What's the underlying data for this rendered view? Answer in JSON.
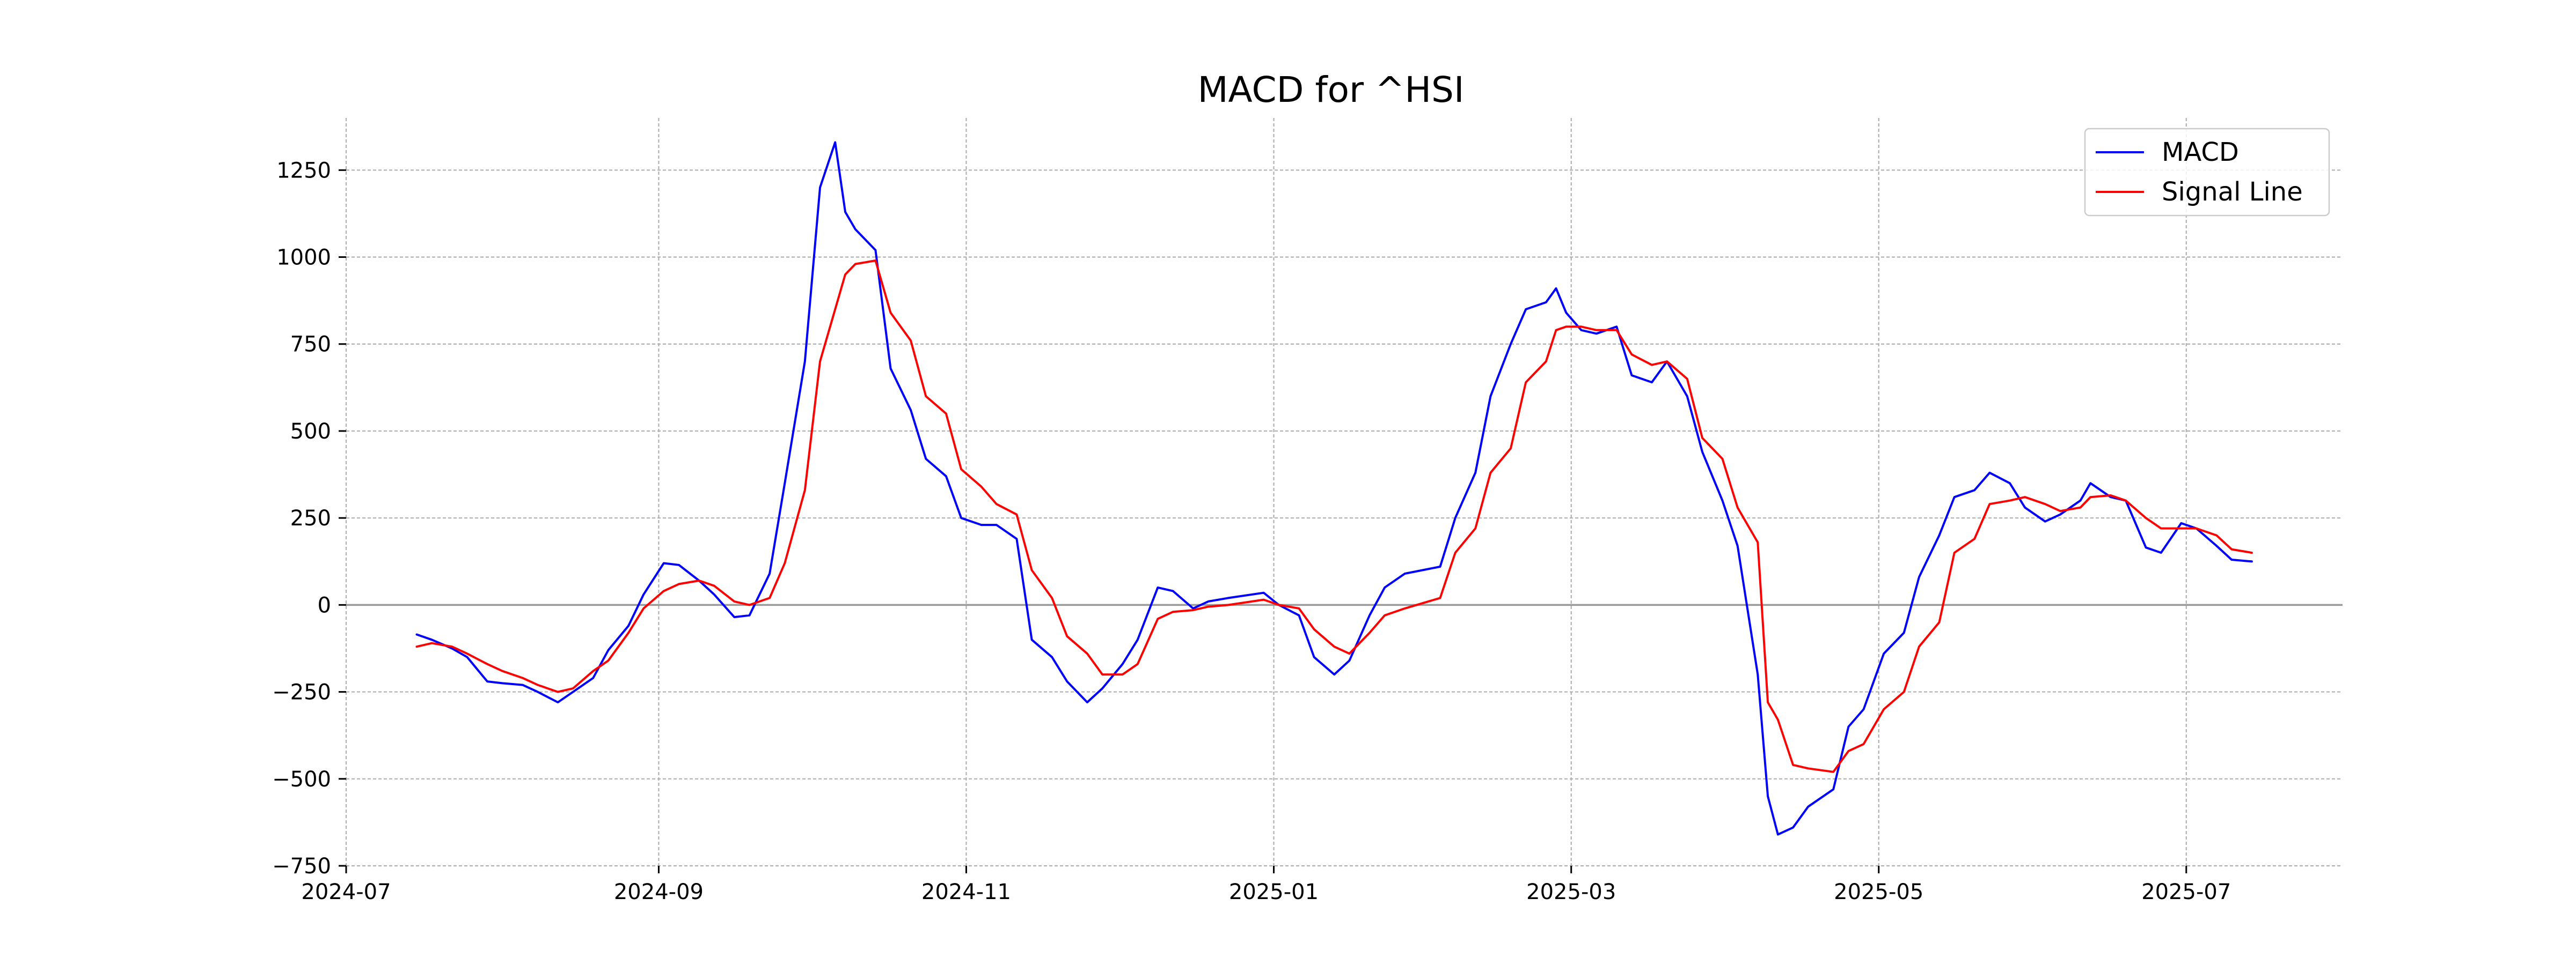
{
  "chart_data": {
    "type": "line",
    "title": "MACD for ^HSI",
    "xlabel": "",
    "ylabel": "",
    "x_range": [
      "2024-07-01",
      "2025-08-01"
    ],
    "ylim": [
      -750,
      1400
    ],
    "x_ticks": [
      {
        "date": "2024-07-01",
        "label": "2024-07"
      },
      {
        "date": "2024-09-01",
        "label": "2024-09"
      },
      {
        "date": "2024-11-01",
        "label": "2024-11"
      },
      {
        "date": "2025-01-01",
        "label": "2025-01"
      },
      {
        "date": "2025-03-01",
        "label": "2025-03"
      },
      {
        "date": "2025-05-01",
        "label": "2025-05"
      },
      {
        "date": "2025-07-01",
        "label": "2025-07"
      }
    ],
    "y_ticks": [
      {
        "value": -750,
        "label": "−750"
      },
      {
        "value": -500,
        "label": "−500"
      },
      {
        "value": -250,
        "label": "−250"
      },
      {
        "value": 0,
        "label": "0"
      },
      {
        "value": 250,
        "label": "250"
      },
      {
        "value": 500,
        "label": "500"
      },
      {
        "value": 750,
        "label": "750"
      },
      {
        "value": 1000,
        "label": "1000"
      },
      {
        "value": 1250,
        "label": "1250"
      }
    ],
    "grid": true,
    "zero_line": true,
    "legend_position": "top-right",
    "series": [
      {
        "name": "MACD",
        "color": "#0000ff",
        "points": [
          [
            "2024-07-15",
            -85
          ],
          [
            "2024-07-18",
            -100
          ],
          [
            "2024-07-22",
            -125
          ],
          [
            "2024-07-25",
            -150
          ],
          [
            "2024-07-29",
            -220
          ],
          [
            "2024-08-01",
            -225
          ],
          [
            "2024-08-05",
            -230
          ],
          [
            "2024-08-08",
            -250
          ],
          [
            "2024-08-12",
            -280
          ],
          [
            "2024-08-15",
            -250
          ],
          [
            "2024-08-19",
            -210
          ],
          [
            "2024-08-22",
            -130
          ],
          [
            "2024-08-26",
            -60
          ],
          [
            "2024-08-29",
            30
          ],
          [
            "2024-09-02",
            120
          ],
          [
            "2024-09-05",
            115
          ],
          [
            "2024-09-09",
            70
          ],
          [
            "2024-09-12",
            30
          ],
          [
            "2024-09-16",
            -35
          ],
          [
            "2024-09-19",
            -30
          ],
          [
            "2024-09-23",
            90
          ],
          [
            "2024-09-26",
            350
          ],
          [
            "2024-09-30",
            700
          ],
          [
            "2024-10-03",
            1200
          ],
          [
            "2024-10-06",
            1330
          ],
          [
            "2024-10-08",
            1130
          ],
          [
            "2024-10-10",
            1080
          ],
          [
            "2024-10-14",
            1020
          ],
          [
            "2024-10-17",
            680
          ],
          [
            "2024-10-21",
            560
          ],
          [
            "2024-10-24",
            420
          ],
          [
            "2024-10-28",
            370
          ],
          [
            "2024-10-31",
            250
          ],
          [
            "2024-11-04",
            230
          ],
          [
            "2024-11-07",
            230
          ],
          [
            "2024-11-11",
            190
          ],
          [
            "2024-11-14",
            -100
          ],
          [
            "2024-11-18",
            -150
          ],
          [
            "2024-11-21",
            -220
          ],
          [
            "2024-11-25",
            -280
          ],
          [
            "2024-11-28",
            -240
          ],
          [
            "2024-12-02",
            -170
          ],
          [
            "2024-12-05",
            -100
          ],
          [
            "2024-12-09",
            50
          ],
          [
            "2024-12-12",
            40
          ],
          [
            "2024-12-16",
            -10
          ],
          [
            "2024-12-19",
            10
          ],
          [
            "2024-12-23",
            20
          ],
          [
            "2024-12-30",
            35
          ],
          [
            "2025-01-02",
            0
          ],
          [
            "2025-01-06",
            -30
          ],
          [
            "2025-01-09",
            -150
          ],
          [
            "2025-01-13",
            -200
          ],
          [
            "2025-01-16",
            -160
          ],
          [
            "2025-01-20",
            -30
          ],
          [
            "2025-01-23",
            50
          ],
          [
            "2025-01-27",
            90
          ],
          [
            "2025-02-03",
            110
          ],
          [
            "2025-02-06",
            250
          ],
          [
            "2025-02-10",
            380
          ],
          [
            "2025-02-13",
            600
          ],
          [
            "2025-02-17",
            750
          ],
          [
            "2025-02-20",
            850
          ],
          [
            "2025-02-24",
            870
          ],
          [
            "2025-02-26",
            910
          ],
          [
            "2025-02-28",
            840
          ],
          [
            "2025-03-03",
            790
          ],
          [
            "2025-03-06",
            780
          ],
          [
            "2025-03-10",
            800
          ],
          [
            "2025-03-13",
            660
          ],
          [
            "2025-03-17",
            640
          ],
          [
            "2025-03-20",
            700
          ],
          [
            "2025-03-24",
            600
          ],
          [
            "2025-03-27",
            440
          ],
          [
            "2025-03-31",
            300
          ],
          [
            "2025-04-03",
            170
          ],
          [
            "2025-04-07",
            -200
          ],
          [
            "2025-04-09",
            -550
          ],
          [
            "2025-04-11",
            -660
          ],
          [
            "2025-04-14",
            -640
          ],
          [
            "2025-04-17",
            -580
          ],
          [
            "2025-04-22",
            -530
          ],
          [
            "2025-04-25",
            -350
          ],
          [
            "2025-04-28",
            -300
          ],
          [
            "2025-05-02",
            -140
          ],
          [
            "2025-05-06",
            -80
          ],
          [
            "2025-05-09",
            80
          ],
          [
            "2025-05-13",
            200
          ],
          [
            "2025-05-16",
            310
          ],
          [
            "2025-05-20",
            330
          ],
          [
            "2025-05-23",
            380
          ],
          [
            "2025-05-27",
            350
          ],
          [
            "2025-05-30",
            280
          ],
          [
            "2025-06-03",
            240
          ],
          [
            "2025-06-06",
            260
          ],
          [
            "2025-06-10",
            300
          ],
          [
            "2025-06-12",
            350
          ],
          [
            "2025-06-16",
            310
          ],
          [
            "2025-06-19",
            300
          ],
          [
            "2025-06-23",
            165
          ],
          [
            "2025-06-26",
            150
          ],
          [
            "2025-06-30",
            235
          ],
          [
            "2025-07-03",
            220
          ],
          [
            "2025-07-07",
            170
          ],
          [
            "2025-07-10",
            130
          ],
          [
            "2025-07-14",
            125
          ]
        ]
      },
      {
        "name": "Signal Line",
        "color": "#ff0000",
        "points": [
          [
            "2024-07-15",
            -120
          ],
          [
            "2024-07-18",
            -110
          ],
          [
            "2024-07-22",
            -120
          ],
          [
            "2024-07-25",
            -140
          ],
          [
            "2024-07-29",
            -170
          ],
          [
            "2024-08-01",
            -190
          ],
          [
            "2024-08-05",
            -210
          ],
          [
            "2024-08-08",
            -230
          ],
          [
            "2024-08-12",
            -250
          ],
          [
            "2024-08-15",
            -240
          ],
          [
            "2024-08-19",
            -190
          ],
          [
            "2024-08-22",
            -160
          ],
          [
            "2024-08-26",
            -80
          ],
          [
            "2024-08-29",
            -10
          ],
          [
            "2024-09-02",
            40
          ],
          [
            "2024-09-05",
            60
          ],
          [
            "2024-09-09",
            70
          ],
          [
            "2024-09-12",
            55
          ],
          [
            "2024-09-16",
            10
          ],
          [
            "2024-09-19",
            0
          ],
          [
            "2024-09-23",
            20
          ],
          [
            "2024-09-26",
            120
          ],
          [
            "2024-09-30",
            330
          ],
          [
            "2024-10-03",
            700
          ],
          [
            "2024-10-06",
            850
          ],
          [
            "2024-10-08",
            950
          ],
          [
            "2024-10-10",
            980
          ],
          [
            "2024-10-14",
            990
          ],
          [
            "2024-10-17",
            840
          ],
          [
            "2024-10-21",
            760
          ],
          [
            "2024-10-24",
            600
          ],
          [
            "2024-10-28",
            550
          ],
          [
            "2024-10-31",
            390
          ],
          [
            "2024-11-04",
            340
          ],
          [
            "2024-11-07",
            290
          ],
          [
            "2024-11-11",
            260
          ],
          [
            "2024-11-14",
            100
          ],
          [
            "2024-11-18",
            20
          ],
          [
            "2024-11-21",
            -90
          ],
          [
            "2024-11-25",
            -140
          ],
          [
            "2024-11-28",
            -200
          ],
          [
            "2024-12-02",
            -200
          ],
          [
            "2024-12-05",
            -170
          ],
          [
            "2024-12-09",
            -40
          ],
          [
            "2024-12-12",
            -20
          ],
          [
            "2024-12-16",
            -15
          ],
          [
            "2024-12-19",
            -5
          ],
          [
            "2024-12-23",
            0
          ],
          [
            "2024-12-30",
            15
          ],
          [
            "2025-01-02",
            0
          ],
          [
            "2025-01-06",
            -10
          ],
          [
            "2025-01-09",
            -70
          ],
          [
            "2025-01-13",
            -120
          ],
          [
            "2025-01-16",
            -140
          ],
          [
            "2025-01-20",
            -80
          ],
          [
            "2025-01-23",
            -30
          ],
          [
            "2025-01-27",
            -10
          ],
          [
            "2025-02-03",
            20
          ],
          [
            "2025-02-06",
            150
          ],
          [
            "2025-02-10",
            220
          ],
          [
            "2025-02-13",
            380
          ],
          [
            "2025-02-17",
            450
          ],
          [
            "2025-02-20",
            640
          ],
          [
            "2025-02-24",
            700
          ],
          [
            "2025-02-26",
            790
          ],
          [
            "2025-02-28",
            800
          ],
          [
            "2025-03-03",
            800
          ],
          [
            "2025-03-06",
            790
          ],
          [
            "2025-03-10",
            790
          ],
          [
            "2025-03-13",
            720
          ],
          [
            "2025-03-17",
            690
          ],
          [
            "2025-03-20",
            700
          ],
          [
            "2025-03-24",
            650
          ],
          [
            "2025-03-27",
            480
          ],
          [
            "2025-03-31",
            420
          ],
          [
            "2025-04-03",
            280
          ],
          [
            "2025-04-07",
            180
          ],
          [
            "2025-04-09",
            -280
          ],
          [
            "2025-04-11",
            -330
          ],
          [
            "2025-04-14",
            -460
          ],
          [
            "2025-04-17",
            -470
          ],
          [
            "2025-04-22",
            -480
          ],
          [
            "2025-04-25",
            -420
          ],
          [
            "2025-04-28",
            -400
          ],
          [
            "2025-05-02",
            -300
          ],
          [
            "2025-05-06",
            -250
          ],
          [
            "2025-05-09",
            -120
          ],
          [
            "2025-05-13",
            -50
          ],
          [
            "2025-05-16",
            150
          ],
          [
            "2025-05-20",
            190
          ],
          [
            "2025-05-23",
            290
          ],
          [
            "2025-05-27",
            300
          ],
          [
            "2025-05-30",
            310
          ],
          [
            "2025-06-03",
            290
          ],
          [
            "2025-06-06",
            270
          ],
          [
            "2025-06-10",
            280
          ],
          [
            "2025-06-12",
            310
          ],
          [
            "2025-06-16",
            315
          ],
          [
            "2025-06-19",
            300
          ],
          [
            "2025-06-23",
            250
          ],
          [
            "2025-06-26",
            220
          ],
          [
            "2025-06-30",
            220
          ],
          [
            "2025-07-03",
            220
          ],
          [
            "2025-07-07",
            200
          ],
          [
            "2025-07-10",
            160
          ],
          [
            "2025-07-14",
            150
          ]
        ]
      }
    ]
  }
}
